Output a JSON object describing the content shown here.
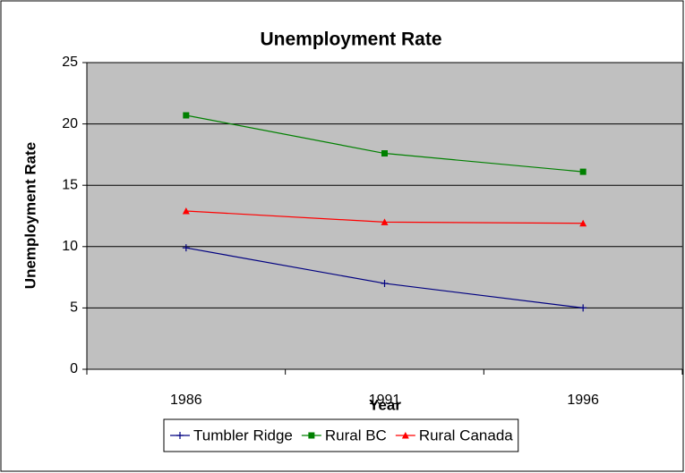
{
  "chart_data": {
    "type": "line",
    "title": "Unemployment Rate",
    "x_label": "Year",
    "y_label": "Unemployment Rate",
    "categories": [
      "1986",
      "1991",
      "1996"
    ],
    "series": [
      {
        "name": "Tumbler Ridge",
        "color": "#000080",
        "marker": "plus",
        "values": [
          9.9,
          7.0,
          5.0
        ]
      },
      {
        "name": "Rural BC",
        "color": "#008000",
        "marker": "square",
        "values": [
          20.7,
          17.6,
          16.1
        ]
      },
      {
        "name": "Rural Canada",
        "color": "#ff0000",
        "marker": "triangle",
        "values": [
          12.9,
          12.0,
          11.9
        ]
      }
    ],
    "ylim": [
      0,
      25
    ],
    "yticks": [
      0,
      5,
      10,
      15,
      20,
      25
    ],
    "grid": true,
    "plot_background": "#c0c0c0",
    "legend": "bottom"
  }
}
